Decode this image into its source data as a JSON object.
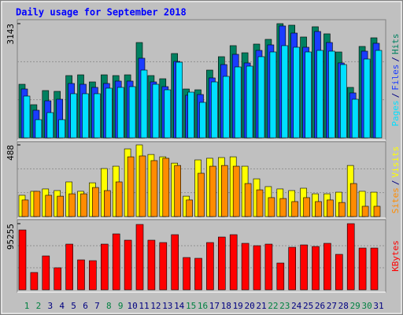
{
  "chart_data": {
    "type": "bar",
    "title": "Daily usage for September 2018",
    "legend_separator": "/",
    "categories": [
      "1",
      "2",
      "3",
      "4",
      "5",
      "6",
      "7",
      "8",
      "9",
      "10",
      "11",
      "12",
      "13",
      "14",
      "15",
      "16",
      "17",
      "18",
      "19",
      "20",
      "21",
      "22",
      "23",
      "24",
      "25",
      "26",
      "27",
      "28",
      "29",
      "30",
      "31"
    ],
    "category_colors": [
      "#008040",
      "#008040",
      "#000080",
      "#000080",
      "#000080",
      "#000080",
      "#000080",
      "#008040",
      "#008040",
      "#000080",
      "#000080",
      "#000080",
      "#000080",
      "#000080",
      "#008040",
      "#008040",
      "#000080",
      "#000080",
      "#000080",
      "#000080",
      "#000080",
      "#008040",
      "#008040",
      "#000080",
      "#000080",
      "#000080",
      "#000080",
      "#000080",
      "#008040",
      "#008040",
      "#000080"
    ],
    "panels": [
      {
        "ylim": [
          0,
          3143
        ],
        "yticks": [
          3143
        ],
        "series": [
          {
            "name": "Hits",
            "color": "#008060",
            "values": [
              1474,
              911,
              1301,
              1279,
              1713,
              1734,
              1539,
              1734,
              1713,
              1734,
              2623,
              1713,
              1626,
              2320,
              1344,
              1322,
              1864,
              2233,
              2537,
              2341,
              2580,
              2710,
              3143,
              3100,
              2775,
              3057,
              2862,
              2363,
              1388,
              2515,
              2753
            ]
          },
          {
            "name": "Files",
            "color": "#1a3cff",
            "values": [
              1344,
              759,
              1019,
              1062,
              1496,
              1474,
              1388,
              1496,
              1561,
              1561,
              2190,
              1539,
              1409,
              2103,
              1171,
              1192,
              1648,
              2016,
              2298,
              2060,
              2406,
              2558,
              3079,
              2883,
              2493,
              2927,
              2623,
              2060,
              1236,
              2385,
              2602
            ]
          },
          {
            "name": "Pages",
            "color": "#00e0ff",
            "values": [
              1149,
              499,
              694,
              499,
              1214,
              1214,
              1214,
              1366,
              1388,
              1409,
              1864,
              1474,
              1322,
              2081,
              1257,
              976,
              1539,
              1691,
              1951,
              1973,
              2233,
              2363,
              2537,
              2493,
              2363,
              2406,
              2385,
              2016,
              1062,
              2168,
              2406
            ]
          }
        ]
      },
      {
        "ylim": [
          0,
          488
        ],
        "yticks": [
          488
        ],
        "series": [
          {
            "name": "Visits",
            "color": "#ffff00",
            "values": [
              145,
              172,
              188,
              177,
              236,
              172,
              230,
              327,
              343,
              461,
              488,
              423,
              407,
              364,
              139,
              386,
              397,
              402,
              407,
              343,
              257,
              204,
              188,
              177,
              193,
              155,
              155,
              166,
              348,
              172,
              166
            ]
          },
          {
            "name": "Sites",
            "color": "#ff8c00",
            "values": [
              113,
              172,
              145,
              139,
              155,
              155,
              198,
              177,
              236,
              407,
              413,
              381,
              397,
              348,
              113,
              295,
              343,
              348,
              343,
              225,
              182,
              129,
              123,
              102,
              129,
              102,
              113,
              96,
              225,
              70,
              70
            ]
          }
        ]
      },
      {
        "ylim": [
          0,
          95255
        ],
        "yticks": [
          95255
        ],
        "series": [
          {
            "name": "KBytes",
            "color": "#ff0000",
            "values": [
              86184,
              24948,
              48762,
              31752,
              65772,
              43092,
              41958,
              65772,
              80514,
              71442,
              94122,
              71442,
              68040,
              79380,
              46494,
              45360,
              68040,
              75978,
              79380,
              66906,
              63504,
              65772,
              38556,
              61236,
              64638,
              62370,
              66906,
              51030,
              95255,
              60102,
              60102
            ]
          }
        ]
      }
    ]
  }
}
